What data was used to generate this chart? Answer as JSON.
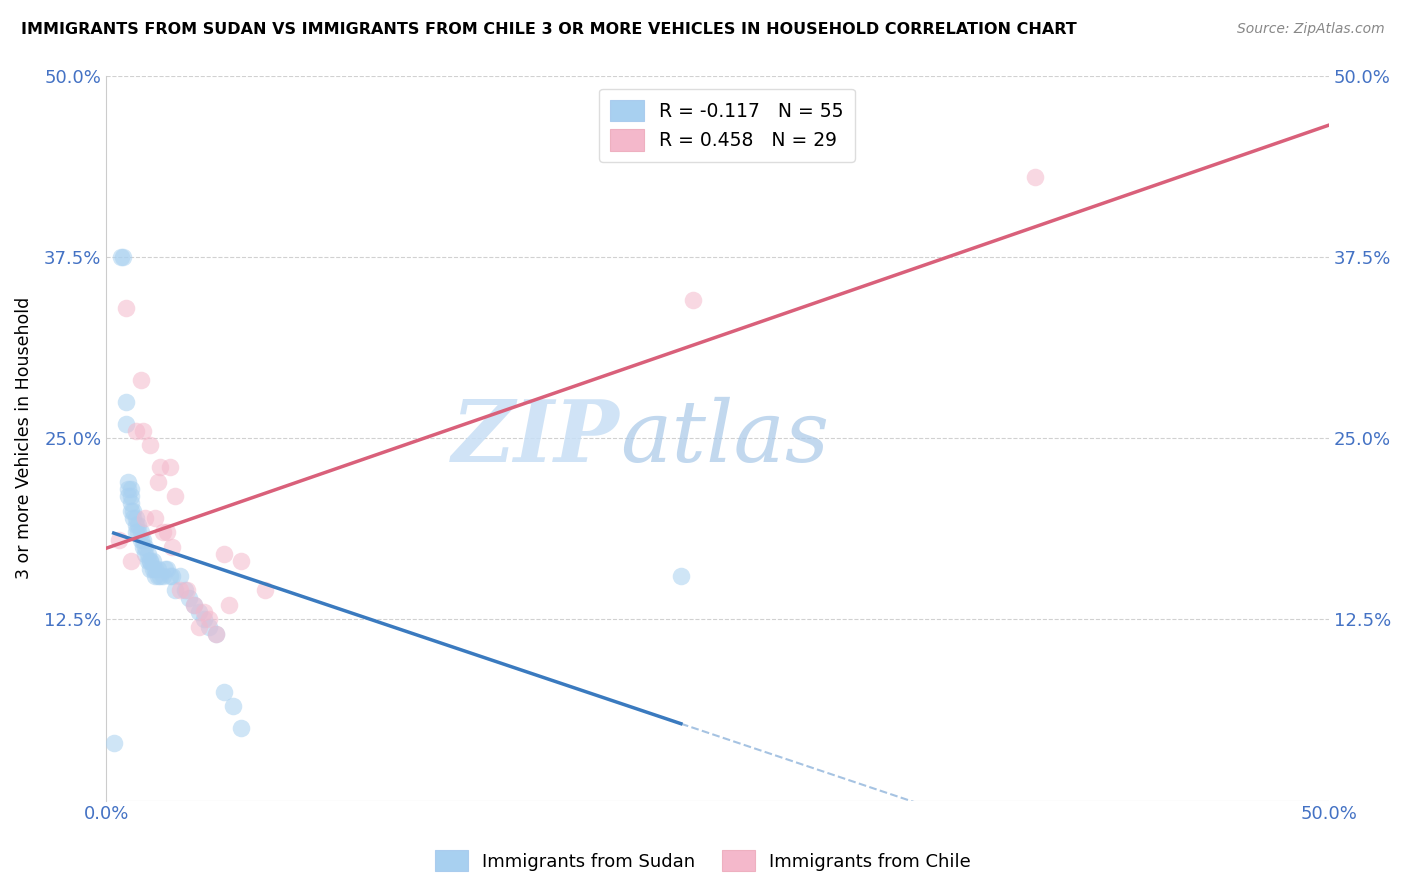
{
  "title": "IMMIGRANTS FROM SUDAN VS IMMIGRANTS FROM CHILE 3 OR MORE VEHICLES IN HOUSEHOLD CORRELATION CHART",
  "source": "Source: ZipAtlas.com",
  "ylabel_label": "3 or more Vehicles in Household",
  "legend_sudan": "Immigrants from Sudan",
  "legend_chile": "Immigrants from Chile",
  "R_sudan": -0.117,
  "N_sudan": 55,
  "R_chile": 0.458,
  "N_chile": 29,
  "watermark_zip": "ZIP",
  "watermark_atlas": "atlas",
  "sudan_color": "#a8d0f0",
  "chile_color": "#f4b8cb",
  "sudan_line_color": "#3a7abf",
  "chile_line_color": "#d9607a",
  "xlim": [
    0.0,
    0.5
  ],
  "ylim": [
    0.0,
    0.5
  ],
  "sudan_x": [
    0.003,
    0.006,
    0.007,
    0.008,
    0.008,
    0.009,
    0.009,
    0.009,
    0.01,
    0.01,
    0.01,
    0.01,
    0.011,
    0.011,
    0.012,
    0.012,
    0.012,
    0.013,
    0.013,
    0.014,
    0.014,
    0.015,
    0.015,
    0.016,
    0.016,
    0.017,
    0.017,
    0.018,
    0.018,
    0.018,
    0.019,
    0.019,
    0.02,
    0.02,
    0.021,
    0.021,
    0.022,
    0.023,
    0.024,
    0.025,
    0.026,
    0.027,
    0.028,
    0.03,
    0.032,
    0.034,
    0.036,
    0.038,
    0.04,
    0.042,
    0.045,
    0.048,
    0.052,
    0.055,
    0.235
  ],
  "sudan_y": [
    0.04,
    0.375,
    0.375,
    0.275,
    0.26,
    0.22,
    0.215,
    0.21,
    0.215,
    0.21,
    0.205,
    0.2,
    0.2,
    0.195,
    0.195,
    0.19,
    0.185,
    0.19,
    0.185,
    0.185,
    0.18,
    0.18,
    0.175,
    0.175,
    0.17,
    0.165,
    0.17,
    0.165,
    0.165,
    0.16,
    0.165,
    0.16,
    0.16,
    0.155,
    0.16,
    0.155,
    0.155,
    0.155,
    0.16,
    0.16,
    0.155,
    0.155,
    0.145,
    0.155,
    0.145,
    0.14,
    0.135,
    0.13,
    0.125,
    0.12,
    0.115,
    0.075,
    0.065,
    0.05,
    0.155
  ],
  "chile_x": [
    0.005,
    0.008,
    0.01,
    0.012,
    0.014,
    0.015,
    0.016,
    0.018,
    0.02,
    0.021,
    0.022,
    0.023,
    0.025,
    0.026,
    0.027,
    0.028,
    0.03,
    0.033,
    0.036,
    0.038,
    0.04,
    0.042,
    0.045,
    0.048,
    0.05,
    0.055,
    0.065,
    0.24,
    0.38
  ],
  "chile_y": [
    0.18,
    0.34,
    0.165,
    0.255,
    0.29,
    0.255,
    0.195,
    0.245,
    0.195,
    0.22,
    0.23,
    0.185,
    0.185,
    0.23,
    0.175,
    0.21,
    0.145,
    0.145,
    0.135,
    0.12,
    0.13,
    0.125,
    0.115,
    0.17,
    0.135,
    0.165,
    0.145,
    0.345,
    0.43
  ]
}
